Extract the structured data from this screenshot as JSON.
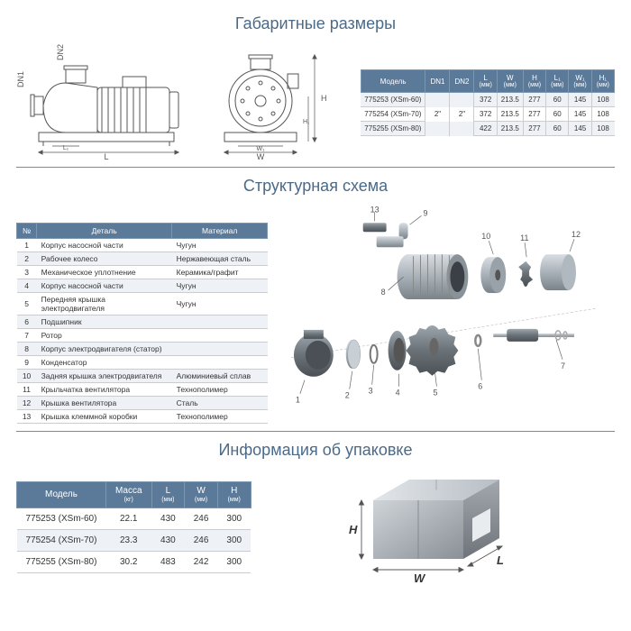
{
  "titles": {
    "dimensions": "Габаритные размеры",
    "structure": "Структурная схема",
    "packaging": "Информация об упаковке"
  },
  "dim_table": {
    "headers": [
      "Модель",
      "DN1",
      "DN2",
      "L (мм)",
      "W (мм)",
      "H (мм)",
      "L₁ (мм)",
      "W₁ (мм)",
      "H₁ (мм)"
    ],
    "dn1": "2\"",
    "dn2": "2\"",
    "rows": [
      {
        "model": "775253 (XSm-60)",
        "L": "372",
        "W": "213.5",
        "H": "277",
        "L1": "60",
        "W1": "145",
        "H1": "108"
      },
      {
        "model": "775254 (XSm-70)",
        "L": "372",
        "W": "213.5",
        "H": "277",
        "L1": "60",
        "W1": "145",
        "H1": "108"
      },
      {
        "model": "775255 (XSm-80)",
        "L": "422",
        "W": "213.5",
        "H": "277",
        "L1": "60",
        "W1": "145",
        "H1": "108"
      }
    ]
  },
  "struct_table": {
    "headers": [
      "№",
      "Деталь",
      "Материал"
    ],
    "rows": [
      {
        "n": "1",
        "d": "Корпус насосной части",
        "m": "Чугун"
      },
      {
        "n": "2",
        "d": "Рабочее колесо",
        "m": "Нержавеющая сталь"
      },
      {
        "n": "3",
        "d": "Механическое уплотнение",
        "m": "Керамика/графит"
      },
      {
        "n": "4",
        "d": "Корпус насосной части",
        "m": "Чугун"
      },
      {
        "n": "5",
        "d": "Передняя крышка электродвигателя",
        "m": "Чугун"
      },
      {
        "n": "6",
        "d": "Подшипник",
        "m": ""
      },
      {
        "n": "7",
        "d": "Ротор",
        "m": ""
      },
      {
        "n": "8",
        "d": "Корпус электродвигателя (статор)",
        "m": ""
      },
      {
        "n": "9",
        "d": "Конденсатор",
        "m": ""
      },
      {
        "n": "10",
        "d": "Задняя крышка электродвигателя",
        "m": "Алюминиевый сплав"
      },
      {
        "n": "11",
        "d": "Крыльчатка вентилятора",
        "m": "Технополимер"
      },
      {
        "n": "12",
        "d": "Крышка вентилятора",
        "m": "Сталь"
      },
      {
        "n": "13",
        "d": "Крышка клеммной коробки",
        "m": "Технополимер"
      }
    ]
  },
  "pack_table": {
    "headers": [
      {
        "t": "Модель",
        "s": ""
      },
      {
        "t": "Масса",
        "s": "(кг)"
      },
      {
        "t": "L",
        "s": "(мм)"
      },
      {
        "t": "W",
        "s": "(мм)"
      },
      {
        "t": "H",
        "s": "(мм)"
      }
    ],
    "rows": [
      {
        "model": "775253 (XSm-60)",
        "mass": "22.1",
        "L": "430",
        "W": "246",
        "H": "300"
      },
      {
        "model": "775254 (XSm-70)",
        "mass": "23.3",
        "L": "430",
        "W": "246",
        "H": "300"
      },
      {
        "model": "775255 (XSm-80)",
        "mass": "30.2",
        "L": "483",
        "W": "242",
        "H": "300"
      }
    ]
  },
  "labels": {
    "DN1": "DN1",
    "DN2": "DN2",
    "L": "L",
    "L1": "L₁",
    "W": "W",
    "W1": "W₁",
    "H": "H",
    "H1": "H₁"
  },
  "callouts": [
    "1",
    "2",
    "3",
    "4",
    "5",
    "6",
    "7",
    "8",
    "9",
    "10",
    "11",
    "12",
    "13"
  ],
  "colors": {
    "header_bg": "#5b7a9a",
    "header_fg": "#fff",
    "alt_row": "#eef2f6",
    "title": "#4a6a8a",
    "border": "#ccc",
    "line": "#666"
  }
}
